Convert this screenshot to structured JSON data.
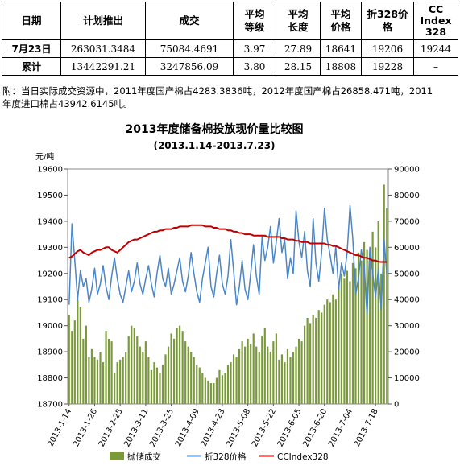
{
  "table": {
    "headers": [
      "日期",
      "计划推出",
      "成交",
      "平均\n等级",
      "平均\n长度",
      "平均\n价格",
      "折328价\n格",
      "CC\nIndex\n328"
    ],
    "rows": [
      {
        "label": "7月23日",
        "planned": "263031.3484",
        "traded": "75084.4691",
        "grade": "3.97",
        "length": "27.89",
        "price": "18641",
        "conv328": "19206",
        "ccindex": "19244"
      },
      {
        "label": "累计",
        "planned": "13442291.21",
        "traded": "3247856.09",
        "grade": "3.80",
        "length": "28.15",
        "price": "18808",
        "conv328": "19228",
        "ccindex": "–"
      }
    ],
    "note": "附：当日实际成交资源中，2011年度国产棉占4283.3836吨，2012年度国产棉占26858.471吨，2011年度进口棉占43942.6145吨。"
  },
  "chart_data": {
    "type": "bar+line",
    "title": "2013年度储备棉投放现价量比较图",
    "subtitle": "(2013.1.14-2013.7.23)",
    "ylabel_left": "元/吨",
    "y_left_range": [
      18700,
      19600
    ],
    "y_left_ticks": [
      18700,
      18800,
      18900,
      19000,
      19100,
      19200,
      19300,
      19400,
      19500,
      19600
    ],
    "y_right_range": [
      0,
      90000
    ],
    "y_right_ticks": [
      0,
      10000,
      20000,
      30000,
      40000,
      50000,
      60000,
      70000,
      80000,
      90000
    ],
    "x_tick_labels": [
      "2013-1-14",
      "2013-1-26",
      "2013-2-25",
      "2013-3-11",
      "2013-3-25",
      "2013-4-09",
      "2013-4-23",
      "2013-5-08",
      "2013-5-22",
      "2013-6-05",
      "2013-6-20",
      "2013-7-04",
      "2013-7-18"
    ],
    "x_tick_index": [
      0,
      9,
      18,
      27,
      36,
      45,
      54,
      63,
      72,
      81,
      90,
      99,
      108
    ],
    "n_days": 113,
    "series": [
      {
        "name": "抛储成交",
        "axis": "right",
        "kind": "bar",
        "color": "#7a9a3a",
        "values": [
          34000,
          28000,
          32000,
          40000,
          37000,
          25000,
          30000,
          18000,
          21000,
          18000,
          17000,
          20000,
          16000,
          28000,
          25000,
          24000,
          12000,
          16000,
          17000,
          18000,
          20000,
          26000,
          30000,
          29000,
          26000,
          22000,
          20000,
          24000,
          18000,
          13000,
          16000,
          14000,
          12000,
          15000,
          19000,
          22000,
          27000,
          25000,
          29000,
          30000,
          28000,
          24000,
          22000,
          20000,
          18000,
          15000,
          14000,
          12000,
          10000,
          9000,
          8000,
          8000,
          10000,
          13000,
          11000,
          12000,
          15000,
          16000,
          19000,
          18000,
          21000,
          24000,
          22000,
          25000,
          23000,
          27000,
          22000,
          20000,
          26000,
          29000,
          22000,
          20000,
          24000,
          27000,
          17000,
          19000,
          16000,
          21000,
          18000,
          20000,
          22000,
          25000,
          24000,
          30000,
          33000,
          31000,
          34000,
          33000,
          36000,
          35000,
          38000,
          40000,
          39000,
          42000,
          40000,
          45000,
          50000,
          48000,
          51000,
          47000,
          54000,
          52000,
          58000,
          55000,
          62000,
          59000,
          57000,
          66000,
          60000,
          70000,
          50000,
          84000,
          75000
        ]
      },
      {
        "name": "折328价格",
        "axis": "left",
        "kind": "line",
        "color": "#4a86c8",
        "values": [
          19080,
          19390,
          19250,
          19100,
          19210,
          19150,
          19180,
          19090,
          19140,
          19220,
          19120,
          19160,
          19230,
          19150,
          19100,
          19190,
          19260,
          19180,
          19120,
          19090,
          19150,
          19210,
          19130,
          19170,
          19240,
          19160,
          19120,
          19180,
          19230,
          19160,
          19110,
          19200,
          19270,
          19180,
          19150,
          19220,
          19120,
          19160,
          19210,
          19260,
          19170,
          19130,
          19190,
          19280,
          19200,
          19130,
          19090,
          19180,
          19240,
          19300,
          19150,
          19110,
          19200,
          19270,
          19160,
          19120,
          19190,
          19330,
          19210,
          19080,
          19150,
          19250,
          19140,
          19100,
          19200,
          19310,
          19190,
          19120,
          19340,
          19250,
          19300,
          19380,
          19240,
          19320,
          19410,
          19280,
          19330,
          19180,
          19260,
          19200,
          19440,
          19320,
          19260,
          19360,
          19210,
          19150,
          19410,
          19240,
          19170,
          19280,
          19450,
          19330,
          19270,
          19200,
          19300,
          19140,
          19240,
          19190,
          19280,
          19460,
          19330,
          19120,
          19180,
          19290,
          19230,
          19040,
          19300,
          19200,
          19110,
          19220,
          19060,
          19330,
          19200
        ]
      },
      {
        "name": "CCIndex328",
        "axis": "left",
        "kind": "line",
        "color": "#c00000",
        "values": [
          19260,
          19265,
          19275,
          19285,
          19290,
          19280,
          19275,
          19270,
          19280,
          19285,
          19290,
          19290,
          19295,
          19300,
          19300,
          19290,
          19285,
          19280,
          19290,
          19300,
          19310,
          19320,
          19325,
          19330,
          19330,
          19335,
          19340,
          19345,
          19350,
          19355,
          19360,
          19360,
          19365,
          19365,
          19370,
          19370,
          19370,
          19375,
          19375,
          19380,
          19380,
          19380,
          19380,
          19385,
          19385,
          19385,
          19385,
          19385,
          19380,
          19380,
          19380,
          19375,
          19375,
          19370,
          19370,
          19370,
          19365,
          19365,
          19360,
          19360,
          19355,
          19355,
          19350,
          19350,
          19350,
          19345,
          19345,
          19345,
          19345,
          19345,
          19340,
          19340,
          19340,
          19340,
          19340,
          19335,
          19335,
          19330,
          19330,
          19330,
          19325,
          19325,
          19320,
          19320,
          19320,
          19315,
          19315,
          19315,
          19315,
          19315,
          19315,
          19310,
          19310,
          19305,
          19305,
          19300,
          19295,
          19290,
          19285,
          19280,
          19275,
          19270,
          19270,
          19265,
          19260,
          19260,
          19255,
          19250,
          19250,
          19245,
          19244,
          19244,
          19244
        ]
      }
    ]
  }
}
